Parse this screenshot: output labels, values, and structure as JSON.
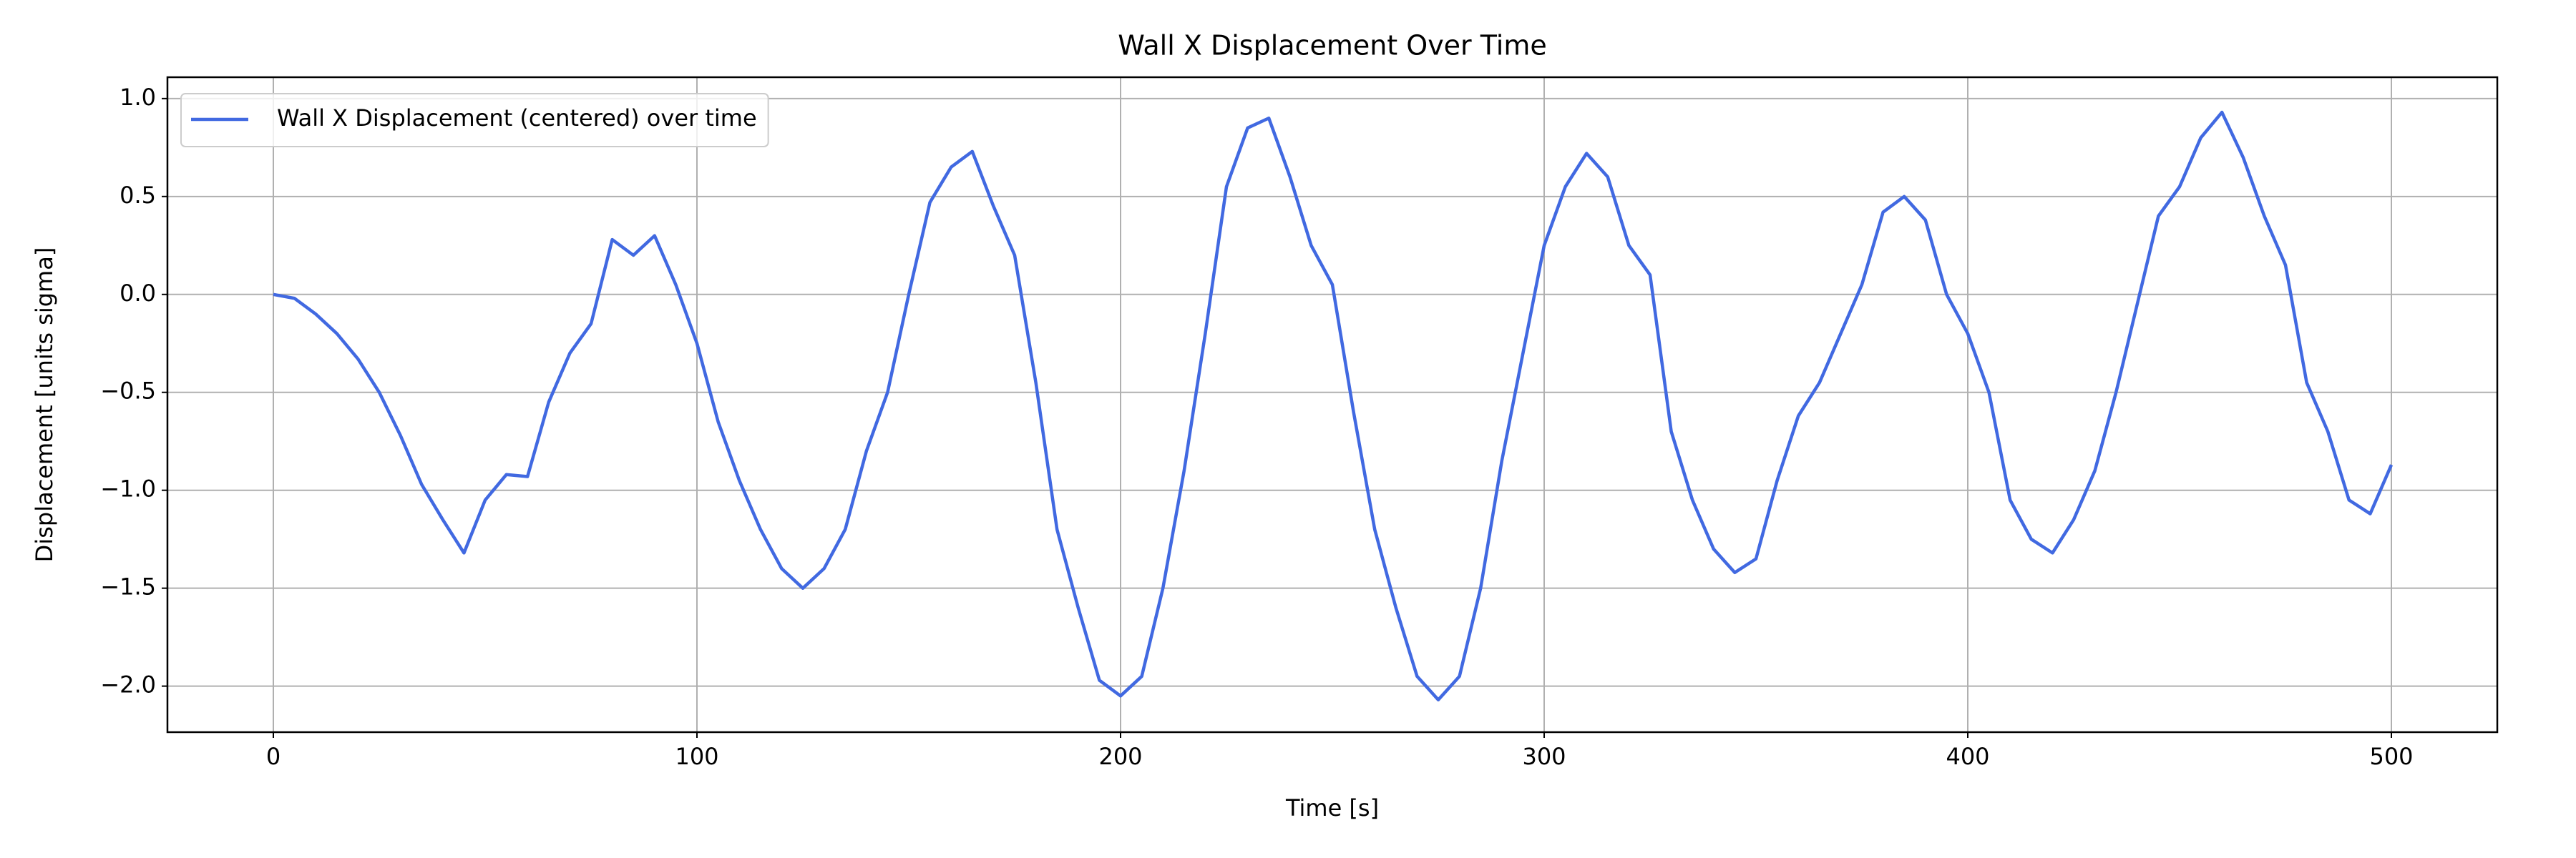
{
  "chart_data": {
    "type": "line",
    "title": "Wall X Displacement Over Time",
    "x_label": "Time [s]",
    "y_label": "Displacement [units sigma]",
    "x": [
      0,
      5,
      10,
      15,
      20,
      25,
      30,
      35,
      40,
      45,
      50,
      55,
      60,
      65,
      70,
      75,
      80,
      85,
      90,
      95,
      100,
      105,
      110,
      115,
      120,
      125,
      130,
      135,
      140,
      145,
      150,
      155,
      160,
      165,
      170,
      175,
      180,
      185,
      190,
      195,
      200,
      205,
      210,
      215,
      220,
      225,
      230,
      235,
      240,
      245,
      250,
      255,
      260,
      265,
      270,
      275,
      280,
      285,
      290,
      295,
      300,
      305,
      310,
      315,
      320,
      325,
      330,
      335,
      340,
      345,
      350,
      355,
      360,
      365,
      370,
      375,
      380,
      385,
      390,
      395,
      400,
      405,
      410,
      415,
      420,
      425,
      430,
      435,
      440,
      445,
      450,
      455,
      460,
      465,
      470,
      475,
      480,
      485,
      490,
      495,
      500
    ],
    "series": [
      {
        "name": "Wall X Displacement (centered) over time",
        "color": "#4169e1",
        "values": [
          0.0,
          -0.02,
          -0.1,
          -0.2,
          -0.33,
          -0.5,
          -0.72,
          -0.97,
          -1.15,
          -1.32,
          -1.05,
          -0.92,
          -0.93,
          -0.55,
          -0.3,
          -0.15,
          0.28,
          0.2,
          0.3,
          0.05,
          -0.25,
          -0.65,
          -0.95,
          -1.2,
          -1.4,
          -1.5,
          -1.4,
          -1.2,
          -0.8,
          -0.5,
          0.0,
          0.47,
          0.65,
          0.73,
          0.45,
          0.2,
          -0.45,
          -1.2,
          -1.6,
          -1.97,
          -2.05,
          -1.95,
          -1.5,
          -0.9,
          -0.2,
          0.55,
          0.85,
          0.9,
          0.6,
          0.25,
          0.05,
          -0.6,
          -1.2,
          -1.6,
          -1.95,
          -2.07,
          -1.95,
          -1.5,
          -0.85,
          -0.3,
          0.25,
          0.55,
          0.72,
          0.6,
          0.25,
          0.1,
          -0.7,
          -1.05,
          -1.3,
          -1.42,
          -1.35,
          -0.95,
          -0.62,
          -0.45,
          -0.2,
          0.05,
          0.42,
          0.5,
          0.38,
          0.0,
          -0.2,
          -0.5,
          -1.05,
          -1.25,
          -1.32,
          -1.15,
          -0.9,
          -0.5,
          -0.05,
          0.4,
          0.55,
          0.8,
          0.93,
          0.7,
          0.4,
          0.15,
          -0.45,
          -0.7,
          -1.05,
          -1.12,
          -0.87
        ]
      }
    ],
    "xlim": [
      -25,
      525
    ],
    "ylim": [
      -2.235,
      1.109
    ],
    "xticks": [
      0,
      100,
      200,
      300,
      400,
      500
    ],
    "yticks": [
      {
        "value": -2,
        "label": "−2.0"
      },
      {
        "value": -1.5,
        "label": "−1.5"
      },
      {
        "value": -1,
        "label": "−1.0"
      },
      {
        "value": -0.5,
        "label": "−0.5"
      },
      {
        "value": 0,
        "label": "0.0"
      },
      {
        "value": 0.5,
        "label": "0.5"
      },
      {
        "value": 1,
        "label": "1.0"
      }
    ],
    "grid": true,
    "legend": "upper left"
  }
}
